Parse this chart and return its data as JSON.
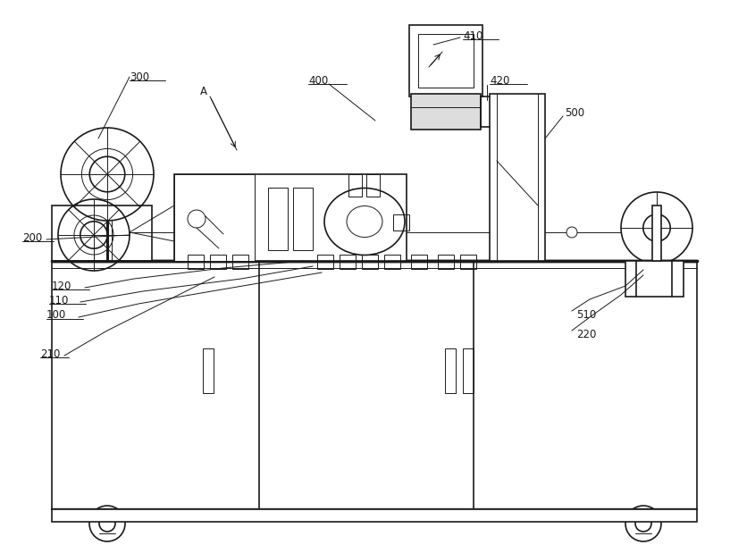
{
  "bg_color": "#ffffff",
  "lc": "#1a1a1a",
  "lw": 1.2,
  "tlw": 0.7,
  "fs": 8.5,
  "figsize": [
    8.17,
    6.1
  ],
  "dpi": 100
}
